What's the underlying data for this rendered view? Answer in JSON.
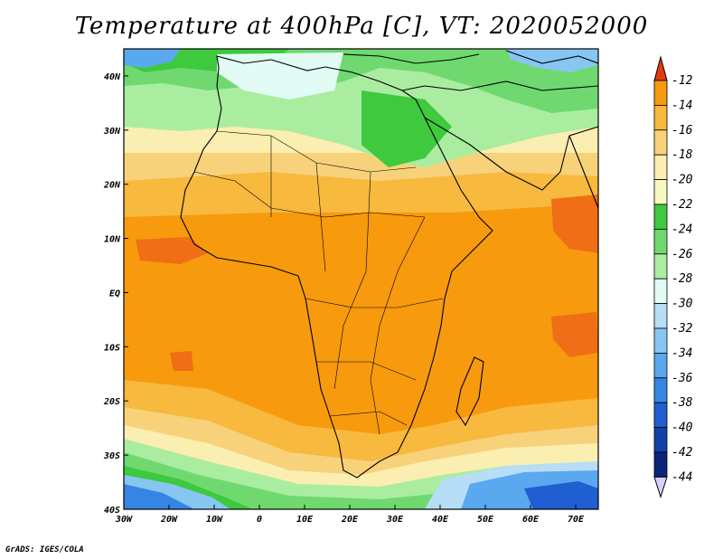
{
  "title": "Temperature at 400hPa [C], VT: 2020052000",
  "credit": "GrADS: IGES/COLA",
  "map": {
    "lon_range": [
      -30,
      75
    ],
    "lat_range": [
      -40,
      45
    ],
    "x_ticks": [
      {
        "lon": -30,
        "label": "30W"
      },
      {
        "lon": -20,
        "label": "20W"
      },
      {
        "lon": -10,
        "label": "10W"
      },
      {
        "lon": 0,
        "label": "0"
      },
      {
        "lon": 10,
        "label": "10E"
      },
      {
        "lon": 20,
        "label": "20E"
      },
      {
        "lon": 30,
        "label": "30E"
      },
      {
        "lon": 40,
        "label": "40E"
      },
      {
        "lon": 50,
        "label": "50E"
      },
      {
        "lon": 60,
        "label": "60E"
      },
      {
        "lon": 70,
        "label": "70E"
      }
    ],
    "y_ticks": [
      {
        "lat": 40,
        "label": "40N"
      },
      {
        "lat": 30,
        "label": "30N"
      },
      {
        "lat": 20,
        "label": "20N"
      },
      {
        "lat": 10,
        "label": "10N"
      },
      {
        "lat": 0,
        "label": "EQ"
      },
      {
        "lat": -10,
        "label": "10S"
      },
      {
        "lat": -20,
        "label": "20S"
      },
      {
        "lat": -30,
        "label": "30S"
      },
      {
        "lat": -40,
        "label": "40S"
      }
    ]
  },
  "colorbar": {
    "levels": [
      {
        "label": "-12",
        "color": "#ef6e16"
      },
      {
        "label": "-14",
        "color": "#f79a0d"
      },
      {
        "label": "-16",
        "color": "#f7b93e"
      },
      {
        "label": "-18",
        "color": "#f7d27a"
      },
      {
        "label": "-20",
        "color": "#faeeb0"
      },
      {
        "label": "-22",
        "color": "#f7f7c0"
      },
      {
        "label": "-24",
        "color": "#3ec93e"
      },
      {
        "label": "-26",
        "color": "#6fd96f"
      },
      {
        "label": "-28",
        "color": "#aaeda0"
      },
      {
        "label": "-30",
        "color": "#e3fbf5"
      },
      {
        "label": "-32",
        "color": "#b7ddf7"
      },
      {
        "label": "-34",
        "color": "#88c6f2"
      },
      {
        "label": "-36",
        "color": "#5aa8ee"
      },
      {
        "label": "-38",
        "color": "#3685e3"
      },
      {
        "label": "-40",
        "color": "#1f5fd1"
      },
      {
        "label": "-42",
        "color": "#1142a8"
      },
      {
        "label": "-44",
        "color": "#0a2478"
      }
    ],
    "top_arrow_color": "#e23b10",
    "bottom_arrow_color": "#d8d0f7"
  }
}
